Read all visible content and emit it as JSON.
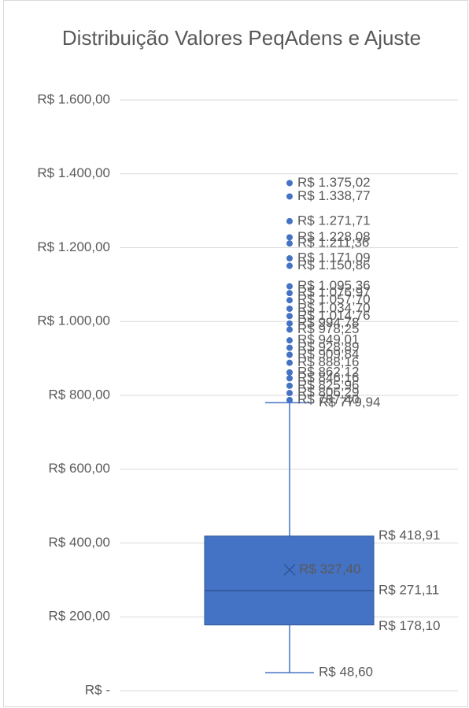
{
  "chart_data": {
    "type": "box",
    "title": "Distribuição Valores PeqAdens e Ajuste",
    "ylim": [
      0,
      1600
    ],
    "yticks": [
      {
        "value": 0,
        "label": "R$ -"
      },
      {
        "value": 200,
        "label": "R$ 200,00"
      },
      {
        "value": 400,
        "label": "R$ 400,00"
      },
      {
        "value": 600,
        "label": "R$ 600,00"
      },
      {
        "value": 800,
        "label": "R$ 800,00"
      },
      {
        "value": 1000,
        "label": "R$ 1.000,00"
      },
      {
        "value": 1200,
        "label": "R$ 1.200,00"
      },
      {
        "value": 1400,
        "label": "R$ 1.400,00"
      },
      {
        "value": 1600,
        "label": "R$ 1.600,00"
      }
    ],
    "grid": true,
    "color": "#4472c4",
    "stats": {
      "min": 48.6,
      "q1": 178.1,
      "median": 271.11,
      "q3": 418.91,
      "max": 779.94,
      "mean": 327.4
    },
    "stat_labels": {
      "min": "R$ 48,60",
      "q1": "R$ 178,10",
      "median": "R$ 271,11",
      "q3": "R$ 418,91",
      "max": "R$ 779,94",
      "mean": "R$ 327,40"
    },
    "outliers": [
      1375.02,
      1338.77,
      1271.71,
      1228.08,
      1211.36,
      1171.09,
      1150.86,
      1095.36,
      1076.97,
      1057.7,
      1034.7,
      1014.76,
      994.78,
      978.25,
      949.01,
      928.89,
      909.84,
      888.16,
      862.12,
      846.16,
      825.96,
      806.29,
      787.4
    ],
    "outlier_labels": [
      "R$ 1.375,02",
      "R$ 1.338,77",
      "R$ 1.271,71",
      "R$ 1.228,08",
      "R$ 1.211,36",
      "R$ 1.171,09",
      "R$ 1.150,86",
      "R$ 1.095,36",
      "R$ 1.076,97",
      "R$ 1.057,70",
      "R$ 1.034,70",
      "R$ 1.014,76",
      "R$ 994,78",
      "R$ 978,25",
      "R$ 949,01",
      "R$ 928,89",
      "R$ 909,84",
      "R$ 888,16",
      "R$ 862,12",
      "R$ 846,16",
      "R$ 825,96",
      "R$ 806,29",
      "R$ 787,40"
    ]
  }
}
